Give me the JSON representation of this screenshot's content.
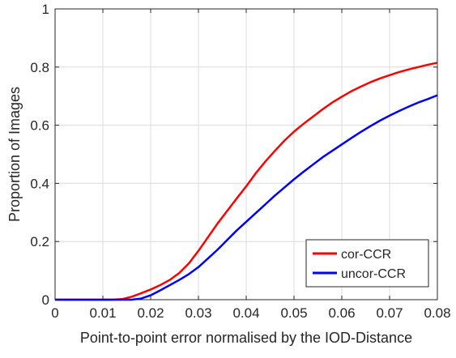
{
  "chart_data": {
    "type": "line",
    "title": "",
    "xlabel": "Point-to-point error normalised by the IOD-Distance",
    "ylabel": "Proportion of Images",
    "xlim": [
      0,
      0.08
    ],
    "ylim": [
      0,
      1
    ],
    "xticks": [
      "0",
      "0.01",
      "0.02",
      "0.03",
      "0.04",
      "0.05",
      "0.06",
      "0.07",
      "0.08"
    ],
    "yticks": [
      "0",
      "0.2",
      "0.4",
      "0.6",
      "0.8",
      "1"
    ],
    "grid": true,
    "legend_position": "lower-right",
    "series": [
      {
        "name": "cor-CCR",
        "color": "#ff0000",
        "x": [
          0,
          0.012,
          0.014,
          0.016,
          0.018,
          0.02,
          0.022,
          0.024,
          0.026,
          0.028,
          0.03,
          0.032,
          0.034,
          0.036,
          0.038,
          0.04,
          0.042,
          0.044,
          0.046,
          0.048,
          0.05,
          0.052,
          0.054,
          0.056,
          0.058,
          0.06,
          0.062,
          0.064,
          0.066,
          0.068,
          0.07,
          0.072,
          0.074,
          0.076,
          0.078,
          0.08
        ],
        "y": [
          0,
          0,
          0.002,
          0.01,
          0.022,
          0.035,
          0.05,
          0.068,
          0.092,
          0.125,
          0.168,
          0.215,
          0.262,
          0.305,
          0.348,
          0.39,
          0.435,
          0.475,
          0.512,
          0.547,
          0.578,
          0.605,
          0.63,
          0.655,
          0.678,
          0.698,
          0.717,
          0.733,
          0.748,
          0.761,
          0.772,
          0.783,
          0.792,
          0.8,
          0.808,
          0.815
        ]
      },
      {
        "name": "uncor-CCR",
        "color": "#0000ff",
        "x": [
          0,
          0.016,
          0.018,
          0.02,
          0.022,
          0.024,
          0.026,
          0.028,
          0.03,
          0.032,
          0.034,
          0.036,
          0.038,
          0.04,
          0.042,
          0.044,
          0.046,
          0.048,
          0.05,
          0.052,
          0.054,
          0.056,
          0.058,
          0.06,
          0.062,
          0.064,
          0.066,
          0.068,
          0.07,
          0.072,
          0.074,
          0.076,
          0.078,
          0.08
        ],
        "y": [
          0,
          0,
          0.004,
          0.015,
          0.032,
          0.05,
          0.068,
          0.088,
          0.112,
          0.142,
          0.172,
          0.205,
          0.238,
          0.268,
          0.298,
          0.328,
          0.358,
          0.386,
          0.414,
          0.44,
          0.465,
          0.49,
          0.512,
          0.534,
          0.556,
          0.577,
          0.597,
          0.616,
          0.633,
          0.649,
          0.664,
          0.678,
          0.69,
          0.703
        ]
      }
    ]
  }
}
